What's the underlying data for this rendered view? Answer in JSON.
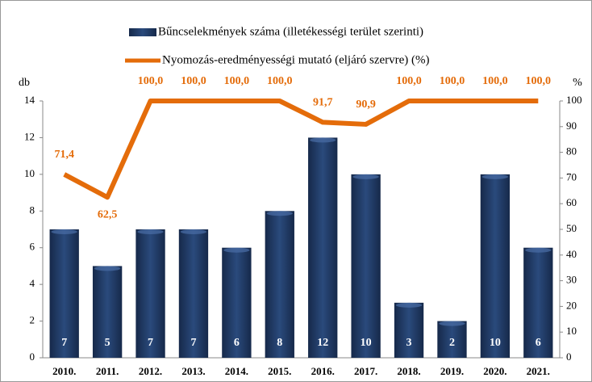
{
  "chart_data": {
    "type": "bar",
    "categories": [
      "2010.",
      "2011.",
      "2012.",
      "2013.",
      "2014.",
      "2015.",
      "2016.",
      "2017.",
      "2018.",
      "2019.",
      "2020.",
      "2021."
    ],
    "series": [
      {
        "name": "Bűncselekmények száma (illetékességi terület szerinti)",
        "color": "#1f3864",
        "values": [
          7,
          5,
          7,
          7,
          6,
          8,
          12,
          10,
          3,
          2,
          10,
          6
        ]
      },
      {
        "name": "Nyomozás-eredményességi mutató (eljáró szervre) (%)",
        "color": "#e46c0a",
        "type": "line",
        "axis": "y2",
        "values": [
          71.4,
          62.5,
          100,
          100,
          100,
          100,
          91.7,
          90.9,
          100,
          100,
          100,
          100
        ],
        "value_labels": [
          "71,4",
          "62,5",
          "100,0",
          "100,0",
          "100,0",
          "100,0",
          "91,7",
          "90,9",
          "100,0",
          "100,0",
          "100,0",
          "100,0"
        ]
      }
    ],
    "ylabel": "db",
    "y2label": "%",
    "ylim": [
      0,
      14
    ],
    "yticks": [
      0,
      2,
      4,
      6,
      8,
      10,
      12,
      14
    ],
    "y2lim": [
      0,
      100
    ],
    "y2ticks": [
      0,
      10,
      20,
      30,
      40,
      50,
      60,
      70,
      80,
      90,
      100
    ]
  }
}
